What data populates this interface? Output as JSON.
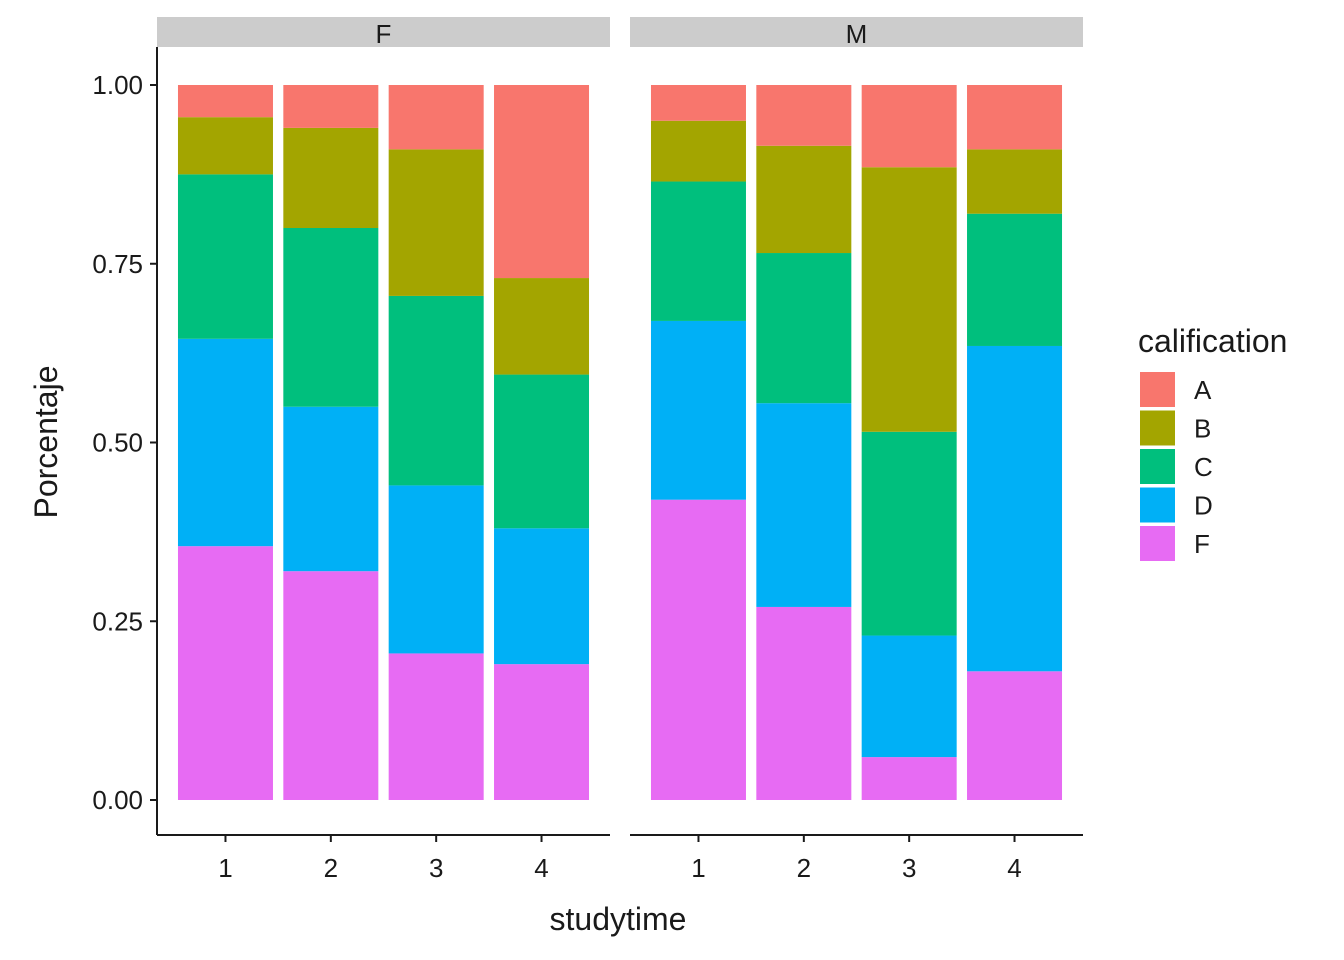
{
  "chart_data": {
    "type": "bar",
    "stacked": true,
    "position": "fill",
    "xlabel": "studytime",
    "ylabel": "Porcentaje",
    "ylim": [
      0,
      1
    ],
    "yticks": [
      "0.00",
      "0.25",
      "0.50",
      "0.75",
      "1.00"
    ],
    "categories": [
      "1",
      "2",
      "3",
      "4"
    ],
    "legend": {
      "title": "calification",
      "position": "right",
      "entries": [
        {
          "name": "A",
          "color": "#F8766D"
        },
        {
          "name": "B",
          "color": "#A3A500"
        },
        {
          "name": "C",
          "color": "#00BF7D"
        },
        {
          "name": "D",
          "color": "#00B0F6"
        },
        {
          "name": "F",
          "color": "#E76BF3"
        }
      ]
    },
    "stack_order_bottom_to_top": [
      "F",
      "D",
      "C",
      "B",
      "A"
    ],
    "facets": [
      {
        "label": "F",
        "series": [
          {
            "name": "A",
            "values": [
              0.045,
              0.06,
              0.09,
              0.27
            ]
          },
          {
            "name": "B",
            "values": [
              0.08,
              0.14,
              0.205,
              0.135
            ]
          },
          {
            "name": "C",
            "values": [
              0.23,
              0.25,
              0.265,
              0.215
            ]
          },
          {
            "name": "D",
            "values": [
              0.29,
              0.23,
              0.235,
              0.19
            ]
          },
          {
            "name": "F",
            "values": [
              0.355,
              0.32,
              0.205,
              0.19
            ]
          }
        ]
      },
      {
        "label": "M",
        "series": [
          {
            "name": "A",
            "values": [
              0.05,
              0.085,
              0.115,
              0.09
            ]
          },
          {
            "name": "B",
            "values": [
              0.085,
              0.15,
              0.37,
              0.09
            ]
          },
          {
            "name": "C",
            "values": [
              0.195,
              0.21,
              0.285,
              0.185
            ]
          },
          {
            "name": "D",
            "values": [
              0.25,
              0.285,
              0.17,
              0.455
            ]
          },
          {
            "name": "F",
            "values": [
              0.42,
              0.27,
              0.06,
              0.18
            ]
          }
        ]
      }
    ]
  }
}
